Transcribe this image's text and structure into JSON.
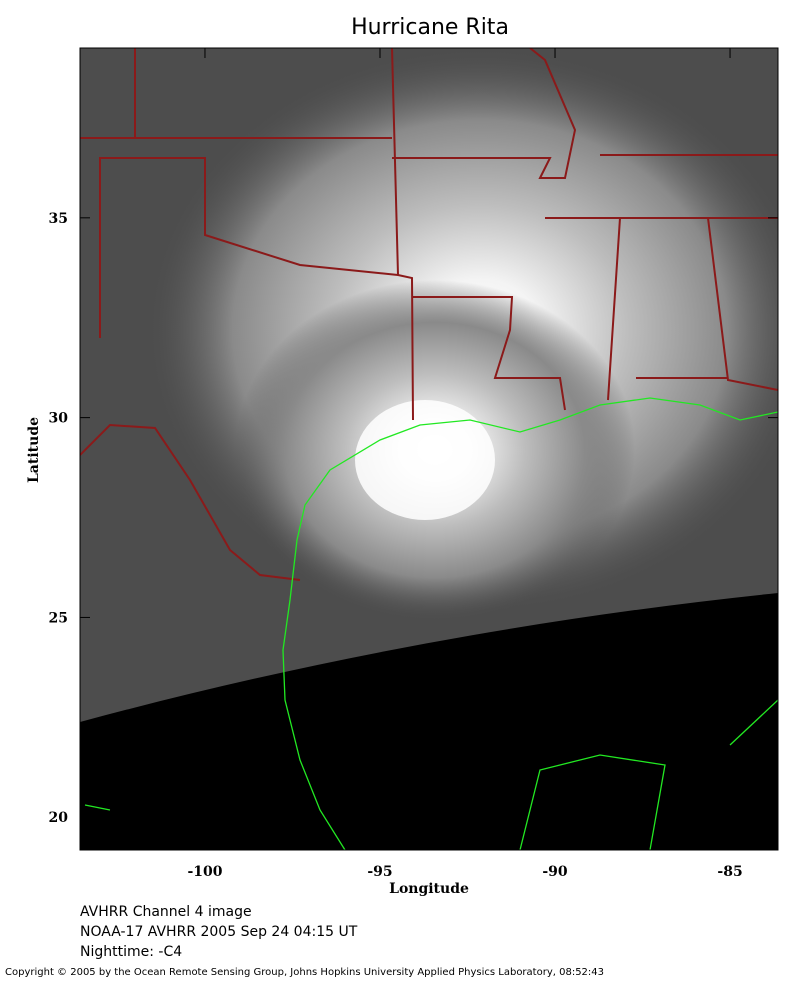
{
  "map": {
    "title": "Hurricane Rita",
    "xlabel": "Longitude",
    "ylabel": "Latitude",
    "xlim": [
      -103.57,
      -83.63
    ],
    "ylim": [
      19.18,
      39.25
    ],
    "xticks": [
      -100,
      -95,
      -90,
      -85
    ],
    "yticks": [
      20,
      25,
      30,
      35
    ],
    "captions": [
      "AVHRR Channel 4 image",
      "NOAA-17 AVHRR 2005 Sep 24 04:15 UT",
      "Nighttime: -C4"
    ],
    "copyright": "Copyright © 2005 by the Ocean Remote Sensing Group, Johns Hopkins University Applied Physics Laboratory, 08:52:43"
  }
}
